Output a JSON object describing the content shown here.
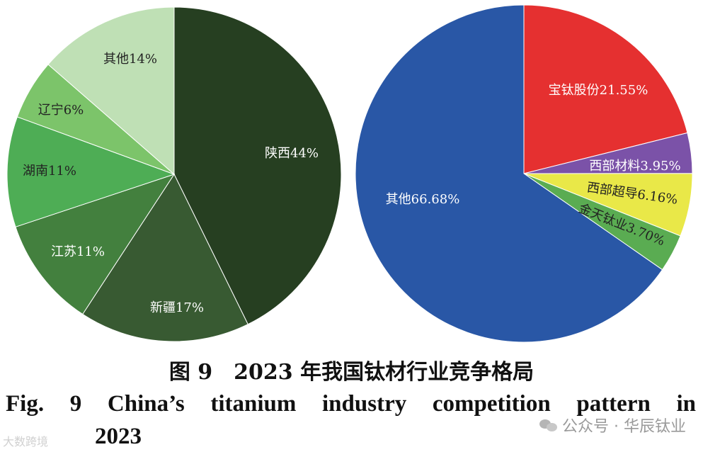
{
  "chart_data": [
    {
      "type": "pie",
      "slices": [
        {
          "label": "陕西44%",
          "value": 44,
          "color": "#263f21",
          "text_color": "#ffffff"
        },
        {
          "label": "新疆17%",
          "value": 17,
          "color": "#385a32",
          "text_color": "#ffffff"
        },
        {
          "label": "江苏11%",
          "value": 11,
          "color": "#43803e",
          "text_color": "#ffffff"
        },
        {
          "label": "湖南11%",
          "value": 11,
          "color": "#4ead55",
          "text_color": "#222222"
        },
        {
          "label": "辽宁6%",
          "value": 6,
          "color": "#7cc46a",
          "text_color": "#222222"
        },
        {
          "label": "其他14%",
          "value": 14,
          "color": "#bfe0b5",
          "text_color": "#222222"
        }
      ]
    },
    {
      "type": "pie",
      "slices": [
        {
          "label": "宝钛股份21.55%",
          "value": 21.55,
          "color": "#e53030",
          "text_color": "#ffffff"
        },
        {
          "label": "西部材料3.95%",
          "value": 3.95,
          "color": "#7b52a8",
          "text_color": "#ffffff"
        },
        {
          "label": "西部超导6.16%",
          "value": 6.16,
          "color": "#e9e848",
          "text_color": "#222222"
        },
        {
          "label": "金天钛业3.70%",
          "value": 3.7,
          "color": "#5aac52",
          "text_color": "#222222"
        },
        {
          "label": "其他66.68%",
          "value": 66.68,
          "color": "#2957a6",
          "text_color": "#ffffff"
        }
      ]
    }
  ],
  "caption_cn": "图 9　2023 年我国钛材行业竞争格局",
  "caption_en_line1": "Fig. 9   China’s titanium industry competition pattern in",
  "caption_en_line2": "2023",
  "watermark_left": "大数跨境",
  "watermark_right": "公众号 · 华辰钛业"
}
